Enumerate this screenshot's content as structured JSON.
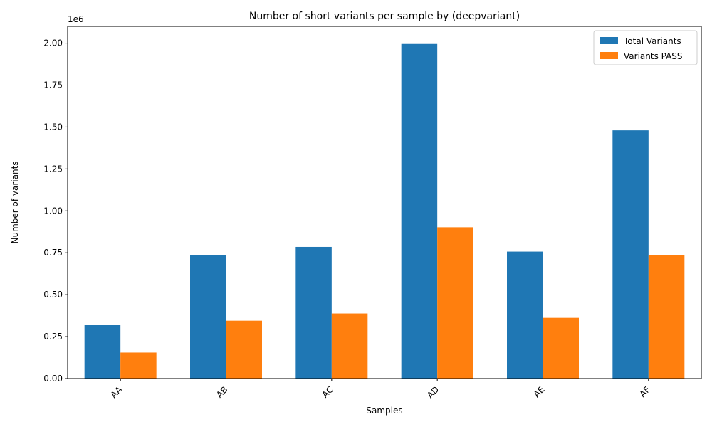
{
  "chart_data": {
    "type": "bar",
    "title": "Number of short variants per sample by (deepvariant)",
    "xlabel": "Samples",
    "ylabel": "Number of variants",
    "y_offset_label": "1e6",
    "categories": [
      "AA",
      "AB",
      "AC",
      "AD",
      "AE",
      "AF"
    ],
    "series": [
      {
        "name": "Total Variants",
        "color": "#1f77b4",
        "values": [
          320000,
          735000,
          785000,
          1995000,
          757000,
          1480000
        ]
      },
      {
        "name": "Variants PASS",
        "color": "#ff7f0e",
        "values": [
          155000,
          345000,
          388000,
          902000,
          362000,
          737000
        ]
      }
    ],
    "ylim": [
      0,
      2100000
    ],
    "yticks": [
      0,
      250000,
      500000,
      750000,
      1000000,
      1250000,
      1500000,
      1750000,
      2000000
    ],
    "ytick_labels": [
      "0.00",
      "0.25",
      "0.50",
      "0.75",
      "1.00",
      "1.25",
      "1.50",
      "1.75",
      "2.00"
    ],
    "grid": false,
    "legend_position": "top-right"
  }
}
